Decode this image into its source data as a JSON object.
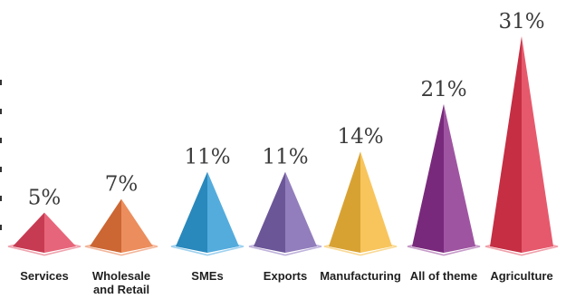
{
  "chart_data": {
    "type": "bar",
    "categories": [
      [
        "Services"
      ],
      [
        "Wholesale",
        "and Retail"
      ],
      [
        "SMEs"
      ],
      [
        "Exports"
      ],
      [
        "Manufacturing"
      ],
      [
        "All of theme"
      ],
      [
        "Agriculture"
      ]
    ],
    "values": [
      5,
      7,
      11,
      11,
      14,
      21,
      31
    ],
    "value_labels": [
      "5%",
      "7%",
      "11%",
      "11%",
      "14%",
      "21%",
      "31%"
    ],
    "ylim": [
      0,
      31
    ],
    "grid": false,
    "legend": "none",
    "colors": {
      "bars": [
        "#e2435d",
        "#e8743a",
        "#2f9ad6",
        "#7a62ad",
        "#f6b83a",
        "#8a2f8c",
        "#e0344c"
      ],
      "base_outline": [
        "#f0a3ae",
        "#f3b69a",
        "#9fd1ef",
        "#bfb2db",
        "#f9d995",
        "#c69ac8",
        "#f0a0aa"
      ]
    }
  }
}
